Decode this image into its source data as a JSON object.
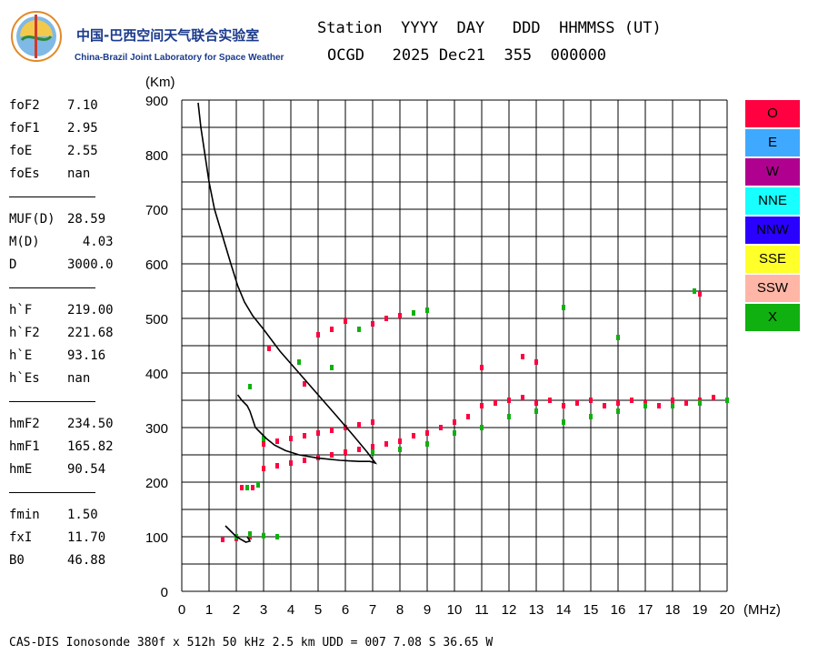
{
  "logo": {
    "cn": "中国-巴西空间天气联合实验室",
    "en": "China-Brazil Joint Laboratory for Space Weather"
  },
  "header": {
    "line1": "Station  YYYY  DAY   DDD  HHMMSS (UT)",
    "line2": "OCGD   2025 Dec21  355  000000"
  },
  "params": [
    {
      "label": "foF2",
      "value": "7.10"
    },
    {
      "label": "foF1",
      "value": "2.95"
    },
    {
      "label": "foE",
      "value": "2.55"
    },
    {
      "label": "foEs",
      "value": "nan"
    },
    {
      "label": "MUF(D)",
      "value": "28.59"
    },
    {
      "label": "M(D)",
      "value": "  4.03"
    },
    {
      "label": "D",
      "value": "3000.0"
    },
    {
      "label": "h`F",
      "value": "219.00"
    },
    {
      "label": "h`F2",
      "value": "221.68"
    },
    {
      "label": "h`E",
      "value": "93.16"
    },
    {
      "label": "h`Es",
      "value": "nan"
    },
    {
      "label": "hmF2",
      "value": "234.50"
    },
    {
      "label": "hmF1",
      "value": "165.82"
    },
    {
      "label": "hmE",
      "value": "90.54"
    },
    {
      "label": "fmin",
      "value": "1.50"
    },
    {
      "label": "fxI",
      "value": "11.70"
    },
    {
      "label": "B0",
      "value": "46.88"
    }
  ],
  "legend": [
    {
      "label": "O",
      "color": "#ff0040"
    },
    {
      "label": "E",
      "color": "#3fa9ff"
    },
    {
      "label": "W",
      "color": "#b0008f"
    },
    {
      "label": "NNE",
      "color": "#17ffff"
    },
    {
      "label": "NNW",
      "color": "#2a00ff"
    },
    {
      "label": "SSE",
      "color": "#ffff2a"
    },
    {
      "label": "SSW",
      "color": "#ffb6a6"
    },
    {
      "label": "X",
      "color": "#10b010"
    }
  ],
  "footer": "CAS-DIS Ionosonde 380f x 512h 50 kHz 2.5 km UDD = 007 7.08 S 36.65 W",
  "chart_data": {
    "type": "scatter",
    "title": "",
    "xlabel": "(MHz)",
    "ylabel": "(Km)",
    "xlim": [
      0,
      20
    ],
    "ylim": [
      0,
      900
    ],
    "xticks": [
      0,
      1,
      2,
      3,
      4,
      5,
      6,
      7,
      8,
      9,
      10,
      11,
      12,
      13,
      14,
      15,
      16,
      17,
      18,
      19,
      20
    ],
    "yticks": [
      0,
      100,
      200,
      300,
      400,
      500,
      600,
      700,
      800,
      900
    ],
    "grid": true,
    "profile_curve": {
      "x": [
        0.6,
        0.7,
        0.85,
        1.0,
        1.2,
        1.5,
        1.8,
        2.05,
        2.3,
        2.6,
        3.0,
        3.6,
        4.3,
        5.0,
        5.7,
        6.3,
        6.8,
        7.1,
        6.9,
        6.5,
        5.8,
        5.0,
        4.3,
        3.8,
        3.4,
        3.1,
        2.9,
        2.7,
        2.6,
        2.5,
        2.4,
        2.2,
        2.05,
        2.4,
        2.5,
        2.35,
        2.0,
        1.8,
        1.6
      ],
      "y": [
        895,
        850,
        800,
        750,
        700,
        650,
        600,
        560,
        530,
        505,
        480,
        440,
        400,
        360,
        320,
        285,
        255,
        235,
        238,
        238,
        240,
        244,
        250,
        258,
        268,
        280,
        290,
        300,
        315,
        330,
        340,
        350,
        360,
        100,
        92,
        90,
        100,
        110,
        120
      ]
    },
    "series": [
      {
        "name": "O",
        "color": "#ff0040",
        "x": [
          1.5,
          2.0,
          2.5,
          2.2,
          2.6,
          3.0,
          3.5,
          4.0,
          4.5,
          5.0,
          5.5,
          6.0,
          6.5,
          7.0,
          3.0,
          3.5,
          4.0,
          4.5,
          5.0,
          5.5,
          6.0,
          6.5,
          7.0,
          7.5,
          8.0,
          8.5,
          9.0,
          9.5,
          10.0,
          10.5,
          11.0,
          11.5,
          12.0,
          12.5,
          13.0,
          13.5,
          14.0,
          14.5,
          15.0,
          15.5,
          16.0,
          16.5,
          17.0,
          17.5,
          18.0,
          18.5,
          19.0,
          19.5,
          20.0,
          3.0,
          3.2,
          5.0,
          5.5,
          6.0,
          7.0,
          7.5,
          8.0,
          8.5,
          4.5,
          11.0,
          12.5,
          13.0,
          19.0
        ],
        "y": [
          95,
          97,
          100,
          190,
          190,
          225,
          230,
          235,
          240,
          245,
          250,
          255,
          260,
          265,
          270,
          275,
          280,
          285,
          290,
          295,
          300,
          305,
          310,
          270,
          275,
          285,
          290,
          300,
          310,
          320,
          340,
          345,
          350,
          355,
          345,
          350,
          340,
          345,
          350,
          340,
          345,
          350,
          345,
          340,
          350,
          345,
          350,
          355,
          350,
          280,
          445,
          470,
          480,
          495,
          490,
          500,
          505,
          510,
          380,
          410,
          430,
          420,
          545
        ]
      },
      {
        "name": "X",
        "color": "#10b010",
        "x": [
          2.0,
          2.5,
          3.0,
          3.5,
          2.4,
          2.8,
          3.0,
          7.0,
          8.0,
          9.0,
          10.0,
          11.0,
          12.0,
          13.0,
          14.0,
          15.0,
          16.0,
          17.0,
          18.0,
          19.0,
          20.0,
          4.3,
          5.5,
          6.5,
          8.5,
          9.0,
          14.0,
          16.0,
          18.8,
          2.5
        ],
        "y": [
          100,
          105,
          102,
          100,
          190,
          195,
          280,
          255,
          260,
          270,
          290,
          300,
          320,
          330,
          310,
          320,
          330,
          340,
          340,
          345,
          350,
          420,
          410,
          480,
          510,
          515,
          520,
          465,
          550,
          375
        ]
      }
    ]
  }
}
